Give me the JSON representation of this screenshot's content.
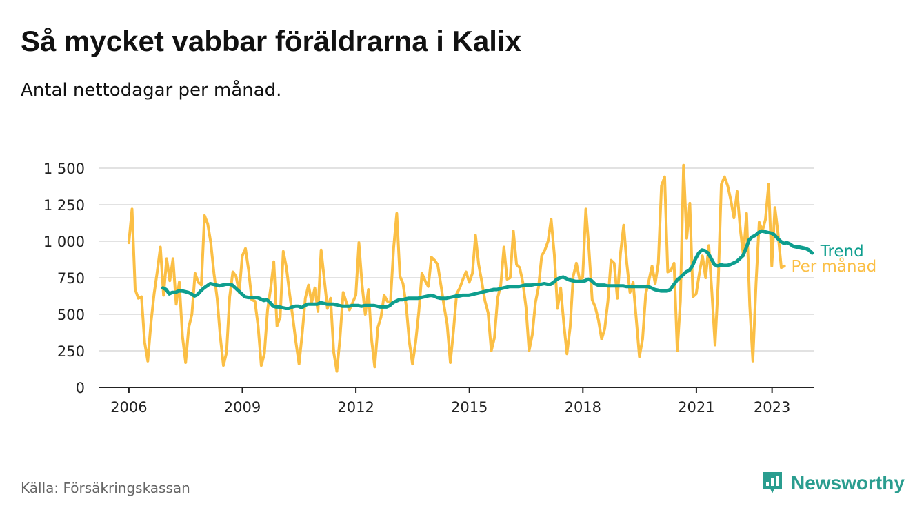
{
  "title": "Så mycket vabbar föräldrarna i Kalix",
  "subtitle": "Antal nettodagar per månad.",
  "source": "Källa: Försäkringskassan",
  "brand": "Newsworthy",
  "colors": {
    "per_manad": "#fbbf45",
    "trend": "#0e9e8e",
    "grid": "#d9d9d9",
    "axis": "#222222",
    "brand": "#2a9d8f"
  },
  "chart_data": {
    "type": "line",
    "x_ticks": [
      "2006",
      "2009",
      "2012",
      "2015",
      "2018",
      "2021",
      "2023"
    ],
    "x_tick_values": [
      2006,
      2009,
      2012,
      2015,
      2018,
      2021,
      2023
    ],
    "y_ticks": [
      "0",
      "250",
      "500",
      "750",
      "1 000",
      "1 250",
      "1 500"
    ],
    "y_tick_values": [
      0,
      250,
      500,
      750,
      1000,
      1250,
      1500
    ],
    "xlim": [
      2005.2,
      2024.1
    ],
    "ylim": [
      0,
      1500
    ],
    "grid": true,
    "legend": "inline-right",
    "series": [
      {
        "name": "Per månad",
        "x_start": 2006.0,
        "step": 0.0833,
        "values": [
          990,
          1220,
          670,
          610,
          620,
          310,
          180,
          440,
          640,
          790,
          960,
          630,
          880,
          730,
          880,
          570,
          720,
          350,
          170,
          410,
          500,
          780,
          720,
          700,
          1175,
          1120,
          990,
          780,
          610,
          350,
          150,
          240,
          620,
          790,
          760,
          650,
          900,
          950,
          800,
          600,
          590,
          420,
          150,
          230,
          530,
          680,
          860,
          420,
          480,
          930,
          820,
          640,
          480,
          310,
          160,
          370,
          610,
          700,
          580,
          680,
          520,
          940,
          740,
          540,
          610,
          240,
          110,
          340,
          650,
          580,
          530,
          580,
          630,
          990,
          700,
          500,
          670,
          330,
          140,
          410,
          480,
          630,
          590,
          580,
          950,
          1190,
          760,
          710,
          560,
          310,
          160,
          310,
          520,
          780,
          730,
          690,
          890,
          870,
          840,
          700,
          560,
          430,
          170,
          390,
          640,
          680,
          740,
          790,
          720,
          780,
          1040,
          840,
          720,
          590,
          510,
          250,
          340,
          610,
          700,
          960,
          740,
          750,
          1070,
          840,
          820,
          720,
          550,
          250,
          360,
          580,
          690,
          900,
          940,
          1000,
          1150,
          910,
          540,
          680,
          440,
          230,
          410,
          760,
          850,
          740,
          750,
          1220,
          940,
          600,
          550,
          460,
          330,
          400,
          590,
          870,
          850,
          610,
          920,
          1110,
          850,
          650,
          720,
          470,
          210,
          330,
          640,
          730,
          830,
          710,
          850,
          1380,
          1440,
          790,
          800,
          850,
          250,
          590,
          1520,
          1020,
          1260,
          620,
          640,
          780,
          900,
          750,
          970,
          650,
          290,
          720,
          1390,
          1440,
          1380,
          1280,
          1160,
          1340,
          1080,
          900,
          1190,
          560,
          180,
          710,
          1130,
          1070,
          1150,
          1390,
          830,
          1230,
          1050,
          820,
          830
        ]
      },
      {
        "name": "Trend",
        "x_start": 2006.9,
        "step": 0.0833,
        "values": [
          680,
          670,
          640,
          650,
          650,
          660,
          660,
          655,
          650,
          640,
          625,
          635,
          660,
          680,
          695,
          710,
          705,
          700,
          695,
          700,
          705,
          705,
          700,
          680,
          660,
          640,
          620,
          615,
          615,
          615,
          615,
          605,
          595,
          600,
          580,
          555,
          550,
          550,
          545,
          540,
          540,
          550,
          555,
          555,
          545,
          560,
          570,
          570,
          570,
          570,
          580,
          575,
          570,
          570,
          570,
          565,
          560,
          555,
          555,
          555,
          560,
          560,
          560,
          555,
          560,
          560,
          560,
          560,
          555,
          550,
          550,
          550,
          560,
          580,
          590,
          600,
          600,
          605,
          610,
          610,
          610,
          610,
          615,
          620,
          625,
          630,
          625,
          615,
          610,
          610,
          610,
          615,
          620,
          625,
          625,
          630,
          630,
          630,
          635,
          640,
          645,
          650,
          655,
          660,
          665,
          670,
          670,
          675,
          680,
          685,
          690,
          690,
          690,
          690,
          695,
          700,
          700,
          700,
          705,
          705,
          705,
          710,
          705,
          705,
          720,
          740,
          750,
          755,
          745,
          735,
          730,
          725,
          725,
          725,
          730,
          740,
          730,
          710,
          700,
          700,
          700,
          695,
          695,
          695,
          695,
          695,
          695,
          690,
          690,
          690,
          690,
          690,
          690,
          690,
          690,
          680,
          670,
          665,
          660,
          660,
          660,
          670,
          700,
          730,
          750,
          770,
          790,
          800,
          830,
          880,
          920,
          940,
          935,
          920,
          880,
          840,
          830,
          840,
          835,
          835,
          840,
          850,
          860,
          880,
          900,
          950,
          1010,
          1030,
          1040,
          1060,
          1070,
          1065,
          1060,
          1055,
          1045,
          1020,
          1000,
          985,
          990,
          980,
          965,
          960,
          960,
          955,
          950,
          940,
          920
        ]
      }
    ]
  }
}
